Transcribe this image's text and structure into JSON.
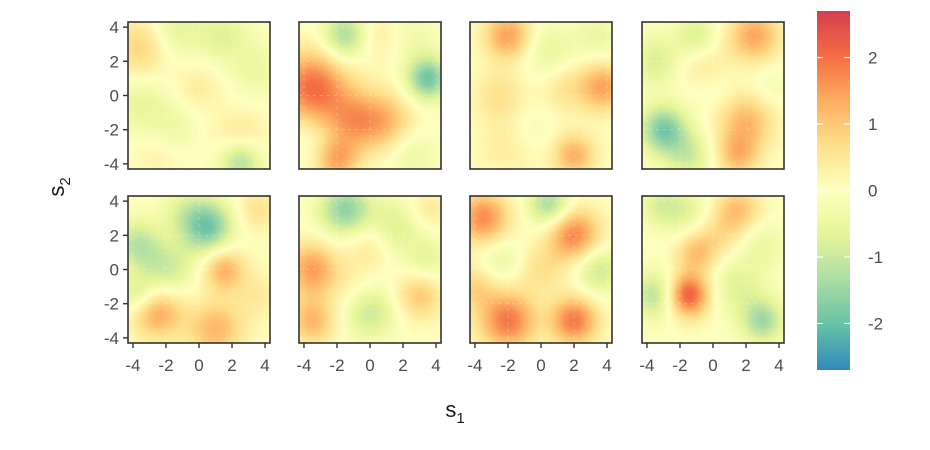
{
  "chart_data": {
    "type": "heatmap",
    "layout": "facet grid, 2 rows x 4 columns",
    "xlabel": "s",
    "xlabel_subscript": "1",
    "ylabel": "s",
    "ylabel_subscript": "2",
    "xlim": [
      -4.3,
      4.3
    ],
    "ylim": [
      -4.3,
      4.3
    ],
    "x_ticks": [
      -4,
      -2,
      0,
      2,
      4
    ],
    "y_ticks": [
      -4,
      -2,
      0,
      2,
      4
    ],
    "x_tick_labels": [
      "-4",
      "-2",
      "0",
      "2",
      "4"
    ],
    "y_tick_labels": [
      "-4",
      "-2",
      "0",
      "2",
      "4"
    ],
    "legend": {
      "position": "right",
      "range": [
        -2.7,
        2.7
      ],
      "ticks": [
        -2,
        -1,
        0,
        1,
        2
      ],
      "tick_labels": [
        "-2",
        "-1",
        "0",
        "1",
        "2"
      ],
      "palette": [
        "#3288bd",
        "#66c2a5",
        "#abdda4",
        "#e6f598",
        "#ffffbf",
        "#fee08b",
        "#fdae61",
        "#f46d43",
        "#d53e4f"
      ]
    },
    "grid_minor": true,
    "panels": [
      {
        "bumps": [
          [
            -3.5,
            2.8,
            0.9,
            1.3
          ],
          [
            -1.5,
            3.8,
            -0.7,
            1.2
          ],
          [
            1.5,
            3.5,
            -0.7,
            1.1
          ],
          [
            -3.5,
            -0.5,
            -0.6,
            1.3
          ],
          [
            0,
            0.5,
            0.4,
            1.0
          ],
          [
            -1.5,
            -2,
            -0.4,
            1.0
          ],
          [
            2.5,
            -2.5,
            0.6,
            1.1
          ],
          [
            2.5,
            -3.8,
            -1.4,
            0.9
          ],
          [
            -2.5,
            -3.5,
            0.3,
            1.0
          ],
          [
            3.5,
            1.5,
            -0.5,
            1.1
          ]
        ]
      },
      {
        "bumps": [
          [
            -3.5,
            0.5,
            2.0,
            1.5
          ],
          [
            -1,
            -1.5,
            1.3,
            1.3
          ],
          [
            1,
            -1.5,
            1.0,
            1.2
          ],
          [
            -1.5,
            3.5,
            -1.4,
            1.0
          ],
          [
            3.5,
            1,
            -1.9,
            0.9
          ],
          [
            -2,
            -3.8,
            1.3,
            0.9
          ],
          [
            2.5,
            3.5,
            -0.4,
            1.1
          ],
          [
            0.5,
            3.5,
            0.5,
            1.0
          ],
          [
            -3.5,
            -2.5,
            -0.3,
            1.0
          ],
          [
            2.5,
            -3.5,
            -0.5,
            1.1
          ]
        ]
      },
      {
        "bumps": [
          [
            -2,
            3.5,
            1.5,
            1.0
          ],
          [
            3.8,
            0.5,
            1.4,
            1.0
          ],
          [
            -2.5,
            0,
            0.6,
            1.1
          ],
          [
            1.5,
            0.5,
            0.6,
            1.1
          ],
          [
            2,
            -3.5,
            1.3,
            0.9
          ],
          [
            -2,
            -3,
            0.4,
            1.3
          ],
          [
            0.5,
            2.5,
            -0.6,
            1.2
          ],
          [
            3.5,
            3.5,
            -0.5,
            1.0
          ],
          [
            -0.5,
            -2,
            -0.3,
            1.0
          ]
        ]
      },
      {
        "bumps": [
          [
            2.5,
            3.5,
            1.4,
            1.1
          ],
          [
            -3.5,
            2,
            -0.8,
            1.1
          ],
          [
            -3,
            -2,
            -1.8,
            1.0
          ],
          [
            -1.5,
            -3.5,
            -0.9,
            1.0
          ],
          [
            2,
            -1.5,
            1.2,
            1.2
          ],
          [
            1.5,
            -3.5,
            1.1,
            0.9
          ],
          [
            -0.5,
            1.5,
            0.6,
            1.1
          ],
          [
            -1,
            3.5,
            -0.8,
            0.9
          ],
          [
            0,
            0.5,
            -0.4,
            1.0
          ],
          [
            3.5,
            0.5,
            -0.3,
            1.0
          ]
        ]
      },
      {
        "bumps": [
          [
            0.5,
            2.5,
            -1.9,
            1.1
          ],
          [
            -3.8,
            1.5,
            -1.1,
            1.0
          ],
          [
            -2,
            0,
            -1.0,
            1.2
          ],
          [
            1.5,
            0,
            1.3,
            0.9
          ],
          [
            -2.5,
            -2.5,
            1.4,
            1.1
          ],
          [
            1,
            -3.5,
            1.2,
            1.2
          ],
          [
            -1,
            3.5,
            -0.5,
            1.0
          ],
          [
            3.5,
            -1.5,
            0.4,
            1.0
          ],
          [
            -3.8,
            -1.5,
            -0.8,
            0.8
          ],
          [
            3.5,
            3.5,
            0.6,
            0.9
          ]
        ]
      },
      {
        "bumps": [
          [
            -1.5,
            3.5,
            -1.6,
            1.1
          ],
          [
            -3.5,
            0,
            1.5,
            1.1
          ],
          [
            -3.5,
            -3,
            1.2,
            1.0
          ],
          [
            0,
            -2.5,
            -1.0,
            1.1
          ],
          [
            1.5,
            2.5,
            -0.8,
            1.2
          ],
          [
            3,
            -1.5,
            1.0,
            1.0
          ],
          [
            0,
            1.5,
            0.6,
            1.0
          ],
          [
            -1,
            -1,
            0.3,
            1.0
          ],
          [
            3.5,
            3.5,
            0.5,
            0.9
          ],
          [
            3.5,
            0.5,
            -0.6,
            1.0
          ]
        ]
      },
      {
        "bumps": [
          [
            -3.5,
            3,
            1.7,
            1.1
          ],
          [
            2,
            2,
            1.8,
            1.1
          ],
          [
            -2,
            -3,
            1.9,
            1.2
          ],
          [
            2,
            -3,
            1.9,
            1.0
          ],
          [
            0.5,
            3.8,
            -1.4,
            0.9
          ],
          [
            -2.5,
            0.5,
            -0.6,
            1.0
          ],
          [
            3.5,
            0,
            -1.0,
            1.0
          ],
          [
            0,
            0,
            0.6,
            1.0
          ],
          [
            -4,
            -1,
            0.8,
            1.0
          ]
        ]
      },
      {
        "bumps": [
          [
            -1.5,
            -1.5,
            2.3,
            0.9
          ],
          [
            -1,
            1,
            1.1,
            0.9
          ],
          [
            1.5,
            3.5,
            1.1,
            1.0
          ],
          [
            -3.5,
            -1.5,
            -1.2,
            1.0
          ],
          [
            3,
            -3,
            -1.4,
            0.9
          ],
          [
            -2,
            3.5,
            -0.8,
            1.1
          ],
          [
            1.5,
            -1,
            -0.7,
            1.2
          ],
          [
            3,
            1.5,
            -0.5,
            1.0
          ],
          [
            0.5,
            2,
            0.5,
            0.9
          ],
          [
            -3.5,
            3.8,
            -0.5,
            0.8
          ]
        ]
      }
    ]
  }
}
